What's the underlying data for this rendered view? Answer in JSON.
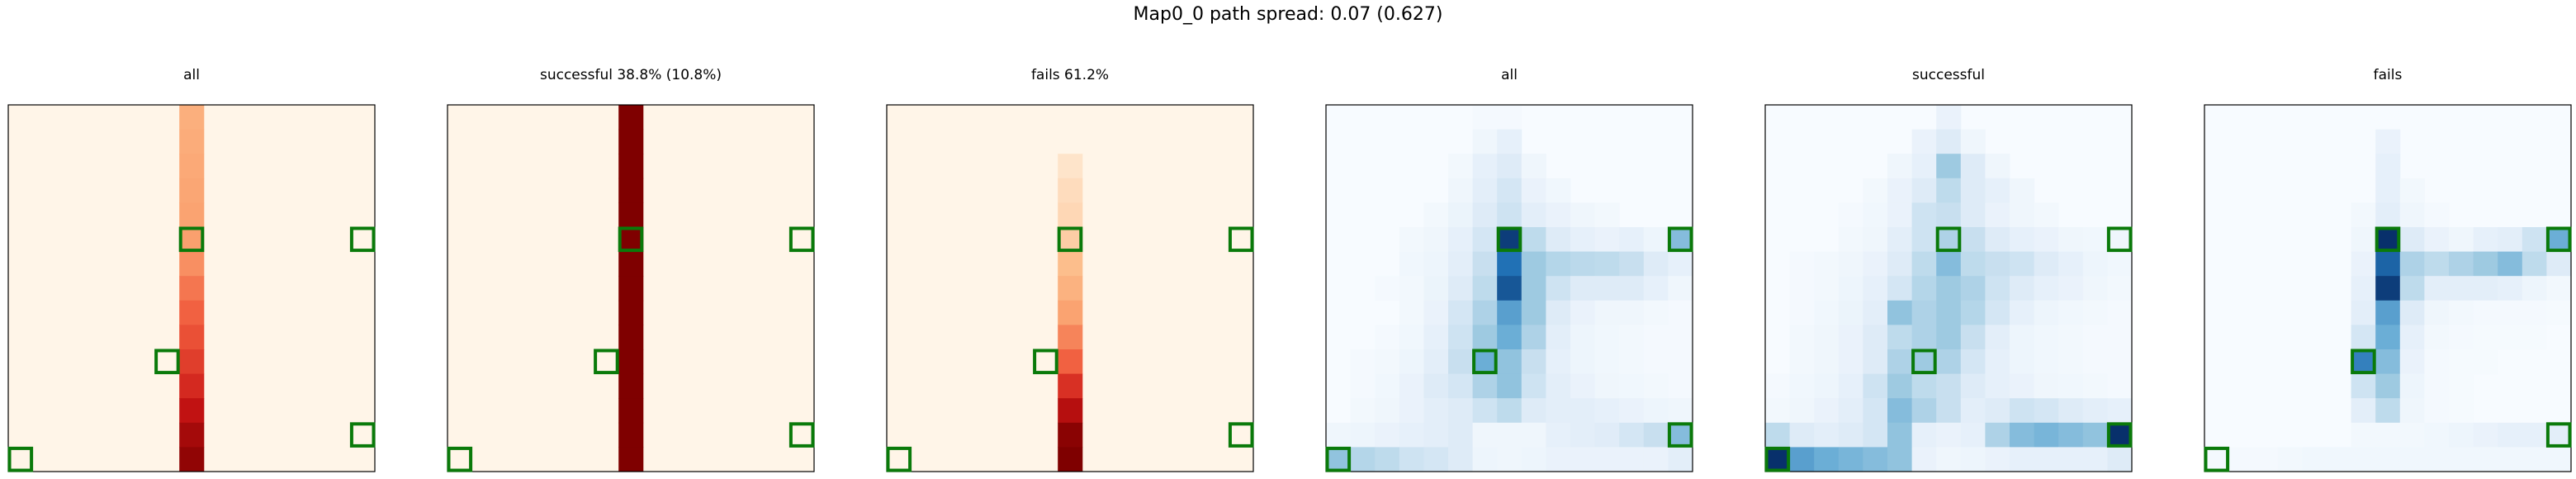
{
  "suptitle": "Map0_0 path spread: 0.07 (0.627)",
  "grid_size": 15,
  "chart_data": [
    {
      "type": "heatmap",
      "title": "all",
      "colormap": "Oranges-Reds",
      "columns": [
        {
          "col": 7,
          "values": [
            0.3,
            0.32,
            0.34,
            0.36,
            0.38,
            0.4,
            0.45,
            0.52,
            0.58,
            0.63,
            0.68,
            0.74,
            0.82,
            0.9,
            0.95
          ]
        }
      ],
      "markers": [
        [
          0,
          14
        ],
        [
          7,
          5
        ],
        [
          14,
          5
        ],
        [
          6,
          10
        ],
        [
          14,
          13
        ]
      ]
    },
    {
      "type": "heatmap",
      "title": "successful 38.8% (10.8%)",
      "colormap": "Oranges-Reds",
      "columns": [
        {
          "col": 7,
          "values": [
            1,
            1,
            1,
            1,
            1,
            1,
            1,
            1,
            1,
            1,
            1,
            1,
            1,
            1,
            1
          ]
        }
      ],
      "markers": [
        [
          0,
          14
        ],
        [
          7,
          5
        ],
        [
          14,
          5
        ],
        [
          6,
          10
        ],
        [
          14,
          13
        ]
      ]
    },
    {
      "type": "heatmap",
      "title": "fails 61.2%",
      "colormap": "Oranges-Reds",
      "columns": [
        {
          "col": 7,
          "values": [
            0,
            0,
            0.05,
            0.08,
            0.1,
            0.14,
            0.2,
            0.28,
            0.38,
            0.48,
            0.58,
            0.72,
            0.85,
            0.97,
            1.0
          ]
        }
      ],
      "markers": [
        [
          0,
          14
        ],
        [
          7,
          5
        ],
        [
          14,
          5
        ],
        [
          6,
          10
        ],
        [
          14,
          13
        ]
      ]
    },
    {
      "type": "heatmap",
      "title": "all",
      "colormap": "Blues",
      "cells": [
        [
          0,
          0,
          0,
          0,
          0,
          0,
          0.02,
          0.02,
          0,
          0,
          0,
          0,
          0,
          0,
          0
        ],
        [
          0,
          0,
          0,
          0,
          0,
          0,
          0.05,
          0.1,
          0,
          0,
          0,
          0,
          0,
          0,
          0
        ],
        [
          0,
          0,
          0,
          0,
          0,
          0.03,
          0.1,
          0.15,
          0.05,
          0,
          0,
          0,
          0,
          0,
          0
        ],
        [
          0,
          0,
          0,
          0,
          0,
          0.05,
          0.12,
          0.18,
          0.08,
          0.04,
          0,
          0,
          0,
          0,
          0
        ],
        [
          0,
          0,
          0,
          0,
          0.03,
          0.07,
          0.15,
          0.2,
          0.12,
          0.08,
          0.05,
          0.03,
          0,
          0,
          0
        ],
        [
          0,
          0,
          0,
          0.03,
          0.05,
          0.1,
          0.18,
          0.95,
          0.25,
          0.15,
          0.1,
          0.08,
          0.1,
          0.06,
          0.45
        ],
        [
          0,
          0,
          0,
          0.04,
          0.06,
          0.12,
          0.22,
          0.75,
          0.35,
          0.28,
          0.26,
          0.25,
          0.22,
          0.15,
          0.1
        ],
        [
          0,
          0,
          0.02,
          0.03,
          0.07,
          0.15,
          0.25,
          0.85,
          0.35,
          0.2,
          0.15,
          0.15,
          0.15,
          0.1,
          0.05
        ],
        [
          0,
          0,
          0,
          0.03,
          0.08,
          0.18,
          0.3,
          0.6,
          0.35,
          0.15,
          0.08,
          0.05,
          0.05,
          0.03,
          0.02
        ],
        [
          0,
          0,
          0.02,
          0.04,
          0.1,
          0.2,
          0.35,
          0.55,
          0.3,
          0.12,
          0.06,
          0.04,
          0.03,
          0.02,
          0.02
        ],
        [
          0,
          0.02,
          0.03,
          0.06,
          0.12,
          0.22,
          0.55,
          0.4,
          0.22,
          0.1,
          0.06,
          0.04,
          0.03,
          0.02,
          0.02
        ],
        [
          0,
          0.02,
          0.04,
          0.08,
          0.15,
          0.18,
          0.3,
          0.4,
          0.2,
          0.12,
          0.08,
          0.05,
          0.04,
          0.03,
          0.02
        ],
        [
          0,
          0.03,
          0.05,
          0.08,
          0.12,
          0.15,
          0.2,
          0.25,
          0.15,
          0.12,
          0.12,
          0.1,
          0.08,
          0.06,
          0.05
        ],
        [
          0.05,
          0.06,
          0.08,
          0.1,
          0.12,
          0.15,
          0.05,
          0.05,
          0.05,
          0.1,
          0.12,
          0.14,
          0.18,
          0.22,
          0.45
        ],
        [
          0.4,
          0.28,
          0.25,
          0.2,
          0.18,
          0.15,
          0.06,
          0.05,
          0.06,
          0.08,
          0.08,
          0.08,
          0.08,
          0.08,
          0.12
        ]
      ],
      "markers": [
        [
          0,
          14
        ],
        [
          7,
          5
        ],
        [
          14,
          5
        ],
        [
          6,
          10
        ],
        [
          14,
          13
        ]
      ]
    },
    {
      "type": "heatmap",
      "title": "successful",
      "colormap": "Blues",
      "cells": [
        [
          0,
          0,
          0,
          0,
          0,
          0,
          0,
          0.08,
          0,
          0,
          0,
          0,
          0,
          0,
          0
        ],
        [
          0,
          0,
          0,
          0,
          0,
          0,
          0.08,
          0.15,
          0.05,
          0,
          0,
          0,
          0,
          0,
          0
        ],
        [
          0,
          0,
          0,
          0,
          0,
          0.05,
          0.1,
          0.35,
          0.15,
          0.05,
          0,
          0,
          0,
          0,
          0
        ],
        [
          0,
          0,
          0,
          0,
          0.03,
          0.08,
          0.15,
          0.25,
          0.15,
          0.1,
          0.05,
          0,
          0,
          0,
          0
        ],
        [
          0,
          0,
          0,
          0.02,
          0.04,
          0.08,
          0.2,
          0.22,
          0.15,
          0.08,
          0.05,
          0.03,
          0,
          0,
          0
        ],
        [
          0,
          0,
          0,
          0.03,
          0.05,
          0.12,
          0.2,
          0.3,
          0.22,
          0.15,
          0.1,
          0.08,
          0.05,
          0.04,
          0.05
        ],
        [
          0,
          0.02,
          0.03,
          0.05,
          0.08,
          0.15,
          0.25,
          0.45,
          0.25,
          0.22,
          0.2,
          0.15,
          0.1,
          0.06,
          0.04
        ],
        [
          0,
          0.02,
          0.03,
          0.06,
          0.1,
          0.18,
          0.28,
          0.35,
          0.3,
          0.2,
          0.15,
          0.1,
          0.08,
          0.05,
          0.03
        ],
        [
          0,
          0.02,
          0.04,
          0.07,
          0.12,
          0.4,
          0.3,
          0.35,
          0.28,
          0.18,
          0.1,
          0.06,
          0.04,
          0.03,
          0.02
        ],
        [
          0,
          0.03,
          0.05,
          0.08,
          0.15,
          0.25,
          0.3,
          0.35,
          0.22,
          0.12,
          0.06,
          0.04,
          0.03,
          0.02,
          0.02
        ],
        [
          0,
          0.03,
          0.05,
          0.08,
          0.15,
          0.3,
          0.35,
          0.3,
          0.18,
          0.1,
          0.06,
          0.04,
          0.03,
          0.02,
          0.02
        ],
        [
          0.02,
          0.04,
          0.06,
          0.1,
          0.2,
          0.35,
          0.25,
          0.22,
          0.15,
          0.1,
          0.08,
          0.05,
          0.04,
          0.03,
          0.02
        ],
        [
          0.03,
          0.05,
          0.08,
          0.12,
          0.18,
          0.45,
          0.3,
          0.22,
          0.12,
          0.15,
          0.2,
          0.18,
          0.15,
          0.12,
          0.1
        ],
        [
          0.25,
          0.15,
          0.12,
          0.15,
          0.18,
          0.4,
          0.1,
          0.08,
          0.1,
          0.3,
          0.45,
          0.5,
          0.45,
          0.4,
          1.0
        ],
        [
          1.0,
          0.6,
          0.55,
          0.5,
          0.45,
          0.4,
          0.08,
          0.05,
          0.06,
          0.08,
          0.1,
          0.1,
          0.1,
          0.1,
          0.15
        ]
      ],
      "markers": [
        [
          0,
          14
        ],
        [
          7,
          5
        ],
        [
          14,
          5
        ],
        [
          6,
          10
        ],
        [
          14,
          13
        ]
      ]
    },
    {
      "type": "heatmap",
      "title": "fails",
      "colormap": "Blues",
      "cells": [
        [
          0,
          0,
          0,
          0,
          0,
          0,
          0,
          0,
          0,
          0,
          0,
          0,
          0,
          0,
          0
        ],
        [
          0,
          0,
          0,
          0,
          0,
          0,
          0,
          0.08,
          0,
          0,
          0,
          0,
          0,
          0,
          0
        ],
        [
          0,
          0,
          0,
          0,
          0,
          0,
          0,
          0.1,
          0,
          0,
          0,
          0,
          0,
          0,
          0
        ],
        [
          0,
          0,
          0,
          0,
          0,
          0,
          0,
          0.1,
          0.03,
          0,
          0,
          0,
          0,
          0,
          0
        ],
        [
          0,
          0,
          0,
          0,
          0,
          0,
          0.03,
          0.12,
          0.05,
          0.02,
          0,
          0,
          0,
          0,
          0
        ],
        [
          0,
          0,
          0,
          0,
          0,
          0,
          0.05,
          1.0,
          0.15,
          0.08,
          0.05,
          0.1,
          0.12,
          0.2,
          0.55
        ],
        [
          0,
          0,
          0,
          0,
          0,
          0,
          0.08,
          0.8,
          0.3,
          0.25,
          0.3,
          0.35,
          0.45,
          0.25,
          0.15
        ],
        [
          0,
          0,
          0,
          0,
          0,
          0,
          0.1,
          0.95,
          0.25,
          0.12,
          0.12,
          0.12,
          0.1,
          0.06,
          0.03
        ],
        [
          0,
          0,
          0,
          0,
          0,
          0,
          0.12,
          0.6,
          0.15,
          0.05,
          0.03,
          0.02,
          0.02,
          0.02,
          0.01
        ],
        [
          0,
          0,
          0,
          0,
          0,
          0,
          0.18,
          0.55,
          0.1,
          0.03,
          0.02,
          0.01,
          0.01,
          0.01,
          0
        ],
        [
          0,
          0,
          0,
          0,
          0,
          0,
          0.7,
          0.45,
          0.08,
          0.02,
          0.01,
          0.01,
          0,
          0,
          0
        ],
        [
          0,
          0,
          0,
          0,
          0,
          0,
          0.2,
          0.35,
          0.06,
          0.02,
          0.01,
          0,
          0,
          0,
          0
        ],
        [
          0,
          0,
          0,
          0,
          0,
          0,
          0.12,
          0.25,
          0.05,
          0.02,
          0.01,
          0,
          0,
          0,
          0
        ],
        [
          0,
          0,
          0,
          0,
          0,
          0,
          0.03,
          0.03,
          0.03,
          0.04,
          0.06,
          0.08,
          0.1,
          0.1,
          0.12
        ],
        [
          0.02,
          0.02,
          0.02,
          0.03,
          0.04,
          0.04,
          0.04,
          0.04,
          0.04,
          0.04,
          0.04,
          0.04,
          0.04,
          0.04,
          0.04
        ]
      ],
      "markers": [
        [
          0,
          14
        ],
        [
          7,
          5
        ],
        [
          14,
          5
        ],
        [
          6,
          10
        ],
        [
          14,
          13
        ]
      ]
    }
  ],
  "colors": {
    "orange_base": "#fff5e8",
    "blue_base": "#f7fbff",
    "marker": "#0a7a0a",
    "frame": "#000000"
  }
}
